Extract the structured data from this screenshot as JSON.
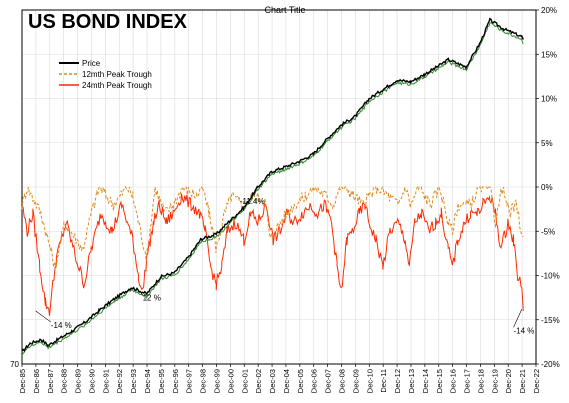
{
  "chart_data": {
    "type": "line",
    "title": "US BOND INDEX",
    "subtitle": "Chart Title",
    "x_tick_labels": [
      "Dec-85",
      "Dec-86",
      "Dec-87",
      "Dec-88",
      "Dec-89",
      "Dec-90",
      "Dec-91",
      "Dec-92",
      "Dec-93",
      "Dec-94",
      "Dec-95",
      "Dec-96",
      "Dec-97",
      "Dec-98",
      "Dec-99",
      "Dec-00",
      "Dec-01",
      "Dec-02",
      "Dec-03",
      "Dec-04",
      "Dec-05",
      "Dec-06",
      "Dec-07",
      "Dec-08",
      "Dec-09",
      "Dec-10",
      "Dec-11",
      "Dec-12",
      "Dec-13",
      "Dec-14",
      "Dec-15",
      "Dec-16",
      "Dec-17",
      "Dec-18",
      "Dec-19",
      "Dec-20",
      "Dec-21",
      "Dec-22"
    ],
    "xlim": [
      1985.92,
      2022.92
    ],
    "left_axis": {
      "tick_labels": [
        "70"
      ],
      "ylim": [
        70,
        180
      ]
    },
    "right_axis": {
      "tick_labels": [
        "20%",
        "15%",
        "10%",
        "5%",
        "0%",
        "-5%",
        "-10%",
        "-15%",
        "-20%"
      ],
      "values": [
        20,
        15,
        10,
        5,
        0,
        -5,
        -10,
        -15,
        -20
      ],
      "ylim": [
        -20,
        20
      ]
    },
    "grid": true,
    "legend_position": "top-left",
    "series": [
      {
        "name": "Price",
        "axis": "left",
        "color": "#000000",
        "x": [
          1985.92,
          1986.5,
          1987.3,
          1987.8,
          1988.5,
          1989.5,
          1990.5,
          1991.5,
          1992.5,
          1993.8,
          1994.9,
          1995.9,
          1996.9,
          1997.9,
          1998.8,
          1999.9,
          2000.9,
          2001.9,
          2002.9,
          2003.9,
          2004.9,
          2005.9,
          2006.9,
          2007.9,
          2008.9,
          2009.9,
          2010.9,
          2011.9,
          2012.9,
          2013.9,
          2014.9,
          2015.9,
          2016.6,
          2017.9,
          2018.9,
          2019.6,
          2020.6,
          2021.9,
          2022.0
        ],
        "y": [
          73.8,
          76.4,
          77.6,
          75.8,
          77.6,
          80.2,
          83.1,
          86.7,
          90.0,
          93.8,
          91.8,
          97.1,
          98.4,
          103.2,
          108.8,
          110.3,
          114.6,
          118.6,
          125.0,
          129.8,
          131.3,
          133.0,
          135.3,
          140.0,
          144.3,
          147.0,
          152.4,
          155.3,
          158.2,
          157.7,
          160.0,
          162.6,
          164.6,
          162.3,
          169.8,
          176.9,
          174.1,
          171.7,
          170.5
        ]
      },
      {
        "name": "12mth Peak Trough",
        "axis": "right",
        "color": "#E08A1E",
        "x": [
          1985.92,
          1986.3,
          1986.8,
          1987.3,
          1987.8,
          1988.3,
          1989.0,
          1990.3,
          1990.9,
          1991.5,
          1992.5,
          1993.5,
          1993.9,
          1994.3,
          1994.9,
          1995.5,
          1996.2,
          1996.8,
          1997.5,
          1998.5,
          1998.9,
          1999.4,
          1999.9,
          2000.5,
          2001.0,
          2001.8,
          2002.5,
          2003.4,
          2003.8,
          2004.5,
          2005.5,
          2006.3,
          2007.0,
          2007.8,
          2008.3,
          2008.8,
          2009.2,
          2009.8,
          2010.5,
          2010.9,
          2011.5,
          2012.3,
          2013.0,
          2013.5,
          2013.9,
          2014.5,
          2015.3,
          2016.0,
          2016.6,
          2016.9,
          2017.3,
          2018.2,
          2018.9,
          2019.6,
          2020.0,
          2020.5,
          2021.0,
          2021.5,
          2022.0
        ],
        "y": [
          -2,
          0,
          -1.5,
          -3,
          -6,
          -9,
          -4,
          -7,
          -3,
          0,
          -2,
          0,
          -1,
          -4,
          -8,
          0,
          -3,
          -2,
          0,
          -1,
          0,
          -3,
          -7,
          -3,
          -1,
          -2,
          -1,
          -1.5,
          -6,
          -4,
          -2,
          -1,
          0,
          -1,
          -2,
          0,
          0,
          -1,
          -2,
          -1,
          0,
          -1,
          -2,
          0,
          -2,
          0,
          -2,
          0,
          -4,
          -5,
          -2,
          -2,
          0,
          0,
          -4,
          0,
          -3,
          -2,
          -6
        ]
      },
      {
        "name": "24mth Peak Trough",
        "axis": "right",
        "color": "#FF2A00",
        "x": [
          1985.92,
          1986.3,
          1986.7,
          1987.2,
          1987.6,
          1987.9,
          1988.4,
          1989.1,
          1989.8,
          1990.4,
          1990.9,
          1991.6,
          1992.4,
          1993.1,
          1993.9,
          1994.3,
          1994.6,
          1994.9,
          1995.4,
          1995.8,
          1996.3,
          1996.8,
          1997.4,
          1998.1,
          1998.7,
          1999.1,
          1999.5,
          1999.9,
          2000.3,
          2000.7,
          2001.3,
          2001.9,
          2002.4,
          2002.9,
          2003.5,
          2004.0,
          2004.5,
          2005.0,
          2005.5,
          2006.1,
          2006.7,
          2007.2,
          2007.7,
          2008.2,
          2008.6,
          2008.9,
          2009.3,
          2009.7,
          2010.2,
          2010.6,
          2010.9,
          2011.4,
          2011.9,
          2012.4,
          2013.0,
          2013.5,
          2013.8,
          2014.2,
          2014.7,
          2015.2,
          2015.7,
          2016.1,
          2016.6,
          2016.9,
          2017.3,
          2017.8,
          2018.2,
          2018.7,
          2019.1,
          2019.6,
          2020.0,
          2020.4,
          2020.9,
          2021.3,
          2021.6,
          2021.9,
          2022.0
        ],
        "y": [
          -2,
          -5,
          -3,
          -9,
          -13,
          -14,
          -8,
          -4,
          -8,
          -11,
          -7,
          -3,
          -5,
          -2,
          -6,
          -10,
          -12,
          -8,
          -4,
          -2,
          -4,
          -3,
          -1,
          -2,
          -3,
          -5,
          -9,
          -11,
          -9,
          -5,
          -4,
          -6,
          -3,
          -4,
          -2,
          -6,
          -5,
          -3,
          -4,
          -3,
          -2,
          -3,
          -2,
          -4,
          -9,
          -12,
          -6,
          -5,
          -3,
          -2,
          -4,
          -6,
          -9,
          -5,
          -4,
          -6,
          -9,
          -4,
          -3,
          -5,
          -4,
          -3,
          -7,
          -9,
          -6,
          -4,
          -3,
          -3,
          -2,
          -1,
          -3,
          -7,
          -4,
          -6,
          -10,
          -11,
          -14
        ]
      }
    ],
    "annotations": [
      {
        "text": "-14 %",
        "x": 1988.0,
        "y_pct": -15.6,
        "anchor_x": 1986.9,
        "anchor_y_pct": -14.0
      },
      {
        "text": "12 %",
        "x": 1994.6,
        "y_pct": -12.5,
        "anchor_x": 1994.5,
        "anchor_y_pct": -12.0
      },
      {
        "text": "-11.4%",
        "x": 2001.6,
        "y_pct": -1.6,
        "anchor_x": 2001.5,
        "anchor_y_pct": -1.2
      },
      {
        "text": "-14 %",
        "x": 2021.3,
        "y_pct": -16.2,
        "anchor_x": 2021.9,
        "anchor_y_pct": -13.8
      }
    ]
  }
}
